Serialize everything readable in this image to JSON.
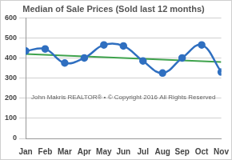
{
  "chart_data": {
    "type": "line",
    "title": "Median of Sale Prices (Sold last 12 months)",
    "annotation": "John Makris REALTOR® • © Copyright 2016 All Rights Reserved",
    "categories": [
      "Jan",
      "Feb",
      "Mar",
      "Apr",
      "May",
      "Jun",
      "Jul",
      "Aug",
      "Sep",
      "Oct",
      "Nov"
    ],
    "series": [
      {
        "color": "#2f6fc0",
        "marker": "circle",
        "line_style": "solid",
        "values": [
          435,
          445,
          375,
          400,
          465,
          460,
          385,
          325,
          400,
          465,
          330
        ]
      },
      {
        "color": "#3fa34d",
        "marker": "none",
        "line_style": "solid",
        "values": [
          420,
          416,
          412,
          408,
          404,
          400,
          396,
          392,
          388,
          384,
          380
        ]
      }
    ],
    "ylim": [
      0,
      600
    ],
    "yticks": [
      0,
      100,
      200,
      300,
      400,
      500,
      600
    ],
    "grid": true
  }
}
